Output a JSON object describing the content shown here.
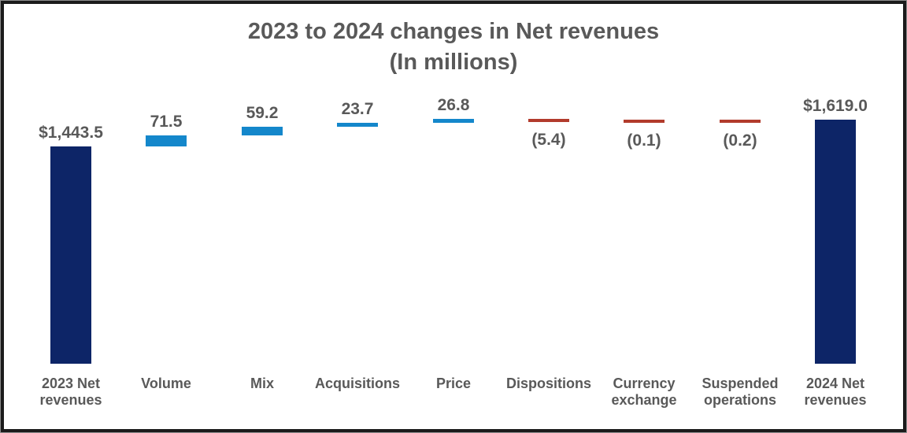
{
  "title": {
    "line1": "2023 to 2024 changes in Net revenues",
    "line2": "(In millions)"
  },
  "colors": {
    "total": "#0d2567",
    "increase": "#1487cb",
    "decrease": "#b23b2c",
    "text": "#595959",
    "frame_border": "#1b1b1b",
    "background": "#ffffff"
  },
  "chart_data": {
    "type": "bar",
    "subtype": "waterfall",
    "title": "2023 to 2024 changes in Net revenues",
    "subtitle": "(In millions)",
    "orientation": "vertical",
    "grid": false,
    "legend": false,
    "axes": {
      "y_axis_visible": false,
      "x_axis_line_visible": false,
      "y_min": 0,
      "y_implied_max": 1650
    },
    "categories": [
      "2023 Net revenues",
      "Volume",
      "Mix",
      "Acquisitions",
      "Price",
      "Dispositions",
      "Currency exchange",
      "Suspended operations",
      "2024 Net revenues"
    ],
    "values": [
      1443.5,
      71.5,
      59.2,
      23.7,
      26.8,
      -5.4,
      -0.1,
      -0.2,
      1619.0
    ],
    "bars": [
      {
        "category": "2023 Net revenues",
        "category_lines": "2023 Net\nrevenues",
        "value": 1443.5,
        "display": "$1,443.5",
        "kind": "total"
      },
      {
        "category": "Volume",
        "category_lines": "Volume",
        "value": 71.5,
        "display": "71.5",
        "kind": "increase"
      },
      {
        "category": "Mix",
        "category_lines": "Mix",
        "value": 59.2,
        "display": "59.2",
        "kind": "increase"
      },
      {
        "category": "Acquisitions",
        "category_lines": "Acquisitions",
        "value": 23.7,
        "display": "23.7",
        "kind": "increase"
      },
      {
        "category": "Price",
        "category_lines": "Price",
        "value": 26.8,
        "display": "26.8",
        "kind": "increase"
      },
      {
        "category": "Dispositions",
        "category_lines": "Dispositions",
        "value": -5.4,
        "display": "(5.4)",
        "kind": "decrease"
      },
      {
        "category": "Currency exchange",
        "category_lines": "Currency\nexchange",
        "value": -0.1,
        "display": "(0.1)",
        "kind": "decrease"
      },
      {
        "category": "Suspended operations",
        "category_lines": "Suspended\noperations",
        "value": -0.2,
        "display": "(0.2)",
        "kind": "decrease"
      },
      {
        "category": "2024 Net revenues",
        "category_lines": "2024 Net\nrevenues",
        "value": 1619.0,
        "display": "$1,619.0",
        "kind": "total"
      }
    ]
  }
}
